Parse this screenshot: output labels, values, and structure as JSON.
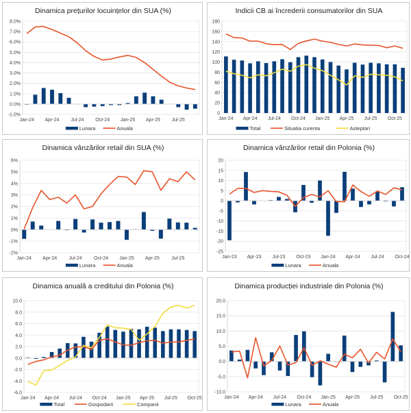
{
  "colors": {
    "bar": "#0b3f7a",
    "red": "#e8532a",
    "yellow": "#f2dc3c",
    "grid": "#e3e3e3",
    "frame": "#c8c8c8"
  },
  "chart_data": [
    {
      "id": "us-house-prices",
      "type": "bar+line",
      "title": "Dinamica prețurilor locuințelor din SUA (%)",
      "x": [
        "Jan-24",
        "Feb-24",
        "Mar-24",
        "Apr-24",
        "May-24",
        "Jun-24",
        "Jul-24",
        "Aug-24",
        "Sep-24",
        "Oct-24",
        "Nov-24",
        "Dec-24",
        "Jan-25",
        "Feb-25",
        "Mar-25",
        "Apr-25",
        "May-25",
        "Jun-25",
        "Jul-25",
        "Aug-25",
        "Sep-25"
      ],
      "xticks": [
        "Jan-24",
        "Apr-24",
        "Jul-24",
        "Oct-24",
        "Jan-25",
        "Apr-25",
        "Jul-25"
      ],
      "ylim": [
        -1,
        8
      ],
      "ystep": 1,
      "yformat": "pct1",
      "series": [
        {
          "name": "Lunara",
          "kind": "bar",
          "color": "#0b3f7a",
          "values": [
            -0.05,
            0.9,
            1.55,
            1.38,
            1.05,
            0.6,
            0.02,
            -0.3,
            -0.25,
            -0.2,
            -0.1,
            -0.1,
            0.1,
            0.75,
            1.1,
            0.75,
            0.42,
            null,
            -0.3,
            -0.55,
            -0.45
          ]
        },
        {
          "name": "Anuala",
          "kind": "line",
          "color": "#e8532a",
          "values": [
            6.8,
            7.45,
            7.5,
            7.2,
            6.85,
            6.5,
            5.9,
            5.15,
            4.6,
            4.25,
            4.35,
            4.55,
            4.7,
            4.5,
            4.0,
            3.35,
            2.7,
            2.1,
            1.75,
            1.55,
            1.4
          ]
        }
      ],
      "legend": [
        "Lunara",
        "Anuala"
      ],
      "legend_position": "bottom",
      "grid": true
    },
    {
      "id": "us-consumer-confidence",
      "type": "bar+line",
      "title": "Indicii CB ai încrederii consumatorilor din SUA",
      "x": [
        "Jan-24",
        "Feb-24",
        "Mar-24",
        "Apr-24",
        "May-24",
        "Jun-24",
        "Jul-24",
        "Aug-24",
        "Sep-24",
        "Oct-24",
        "Nov-24",
        "Dec-24",
        "Jan-25",
        "Feb-25",
        "Mar-25",
        "Apr-25",
        "May-25",
        "Jun-25",
        "Jul-25",
        "Aug-25",
        "Sep-25",
        "Oct-25",
        "Nov-25"
      ],
      "xticks": [
        "Jan-24",
        "Apr-24",
        "Jul-24",
        "Oct-24",
        "Jan-25",
        "Apr-25",
        "Jul-25",
        "Oct-25"
      ],
      "ylim": [
        0,
        180
      ],
      "ystep": 20,
      "yformat": "int",
      "series": [
        {
          "name": "Total",
          "kind": "bar",
          "color": "#0b3f7a",
          "values": [
            111,
            104.5,
            103,
            97.5,
            101.5,
            98,
            101.5,
            105.5,
            99.5,
            109.5,
            112.5,
            109.5,
            105,
            100,
            93,
            85.5,
            98.5,
            95,
            98.5,
            97.5,
            95.5,
            95.5,
            88.7
          ]
        },
        {
          "name": "Situatia curenta",
          "kind": "line",
          "color": "#e8532a",
          "values": [
            155,
            148,
            147,
            141,
            141,
            136,
            134,
            134.5,
            124.5,
            136.5,
            141.5,
            145,
            141,
            138.5,
            134.5,
            131.5,
            135.5,
            133.5,
            133,
            132.5,
            128,
            131.5,
            127
          ]
        },
        {
          "name": "Asteptari",
          "kind": "line",
          "color": "#f2dc3c",
          "values": [
            82,
            77,
            74,
            69,
            75,
            73,
            79,
            86,
            82,
            92,
            95,
            88,
            83,
            74,
            65,
            55,
            73,
            70,
            76,
            75,
            74,
            71,
            63
          ]
        }
      ],
      "legend": [
        "Total",
        "Situatia curenta",
        "Asteptari"
      ],
      "legend_position": "bottom",
      "grid": true
    },
    {
      "id": "us-retail-sales",
      "type": "bar+line",
      "title": "Dinamica vânzărilor retail din SUA (%)",
      "x": [
        "Jan-24",
        "Feb-24",
        "Mar-24",
        "Apr-24",
        "May-24",
        "Jun-24",
        "Jul-24",
        "Aug-24",
        "Sep-24",
        "Oct-24",
        "Nov-24",
        "Dec-24",
        "Jan-25",
        "Feb-25",
        "Mar-25",
        "Apr-25",
        "May-25",
        "Jun-25",
        "Jul-25",
        "Aug-25",
        "Sep-25"
      ],
      "xticks": [
        "Jan-24",
        "Apr-24",
        "Jul-24",
        "Oct-24",
        "Jan-25",
        "Apr-25",
        "Jul-25"
      ],
      "ylim": [
        -2,
        6
      ],
      "ystep": 1,
      "yformat": "pct0",
      "series": [
        {
          "name": "Lunara",
          "kind": "bar",
          "color": "#0b3f7a",
          "values": [
            -0.8,
            0.7,
            0.35,
            null,
            0.75,
            -0.05,
            0.92,
            -0.25,
            0.88,
            0.6,
            0.65,
            0.75,
            -0.88,
            0.03,
            1.52,
            -0.1,
            -0.78,
            0.95,
            0.62,
            0.6,
            0.15
          ]
        },
        {
          "name": "Anuala",
          "kind": "line",
          "color": "#e8532a",
          "values": [
            0.05,
            1.9,
            3.4,
            2.6,
            2.8,
            2.3,
            3.0,
            1.8,
            2.0,
            3.1,
            3.9,
            4.6,
            4.55,
            3.9,
            5.1,
            5.0,
            3.4,
            4.4,
            4.15,
            5.0,
            4.3
          ]
        }
      ],
      "legend": [
        "Lunara",
        "Anuala"
      ],
      "legend_position": "bottom",
      "grid": true
    },
    {
      "id": "pl-retail-sales",
      "type": "bar+line",
      "title": "Dinamica vânzărilor retail din Polonia (%)",
      "x": [
        "Jan-23",
        "Feb-23",
        "Mar-23",
        "Apr-23",
        "May-23",
        "Jun-23",
        "Jul-23",
        "Aug-23",
        "Sep-23",
        "Oct-23",
        "Nov-23",
        "Dec-23",
        "Jan-24",
        "Feb-24",
        "Mar-24",
        "Apr-24",
        "May-24",
        "Jun-24",
        "Jul-24",
        "Aug-24",
        "Sep-24",
        "Oct-24"
      ],
      "xticks": [
        "Jan-23",
        "Apr-23",
        "Jul-23",
        "Oct-23",
        "Jan-24",
        "Apr-24",
        "Jul-24",
        "Oct-24"
      ],
      "ylim": [
        -25,
        20
      ],
      "ystep": 5,
      "yformat": "int",
      "series": [
        {
          "name": "Lunara",
          "kind": "bar",
          "color": "#0b3f7a",
          "values": [
            -19.5,
            -0.8,
            14.2,
            -1.8,
            null,
            0.3,
            1.9,
            0.9,
            -5.7,
            7.8,
            -1.0,
            10.0,
            -17.3,
            -6.0,
            14.3,
            6.0,
            -3.1,
            -1.8,
            4.5,
            -0.3,
            -2.8,
            6.7
          ]
        },
        {
          "name": "Anuala",
          "kind": "line",
          "color": "#e8532a",
          "values": [
            3.3,
            6.1,
            6.1,
            4.1,
            5.0,
            4.6,
            4.4,
            2.7,
            -2.8,
            1.6,
            3.1,
            1.9,
            4.9,
            -0.4,
            -0.5,
            7.8,
            4.5,
            2.2,
            4.8,
            3.1,
            6.4,
            5.4
          ]
        }
      ],
      "legend": [
        "Lunara",
        "Anuala"
      ],
      "legend_position": "bottom",
      "grid": true
    },
    {
      "id": "pl-credit",
      "type": "bar+line",
      "title": "Dinamica anuală a creditului din Polonia (%)",
      "x": [
        "Jan-24",
        "Feb-24",
        "Mar-24",
        "Apr-24",
        "May-24",
        "Jun-24",
        "Jul-24",
        "Aug-24",
        "Sep-24",
        "Oct-24",
        "Nov-24",
        "Dec-24",
        "Jan-25",
        "Feb-25",
        "Mar-25",
        "Apr-25",
        "May-25",
        "Jun-25",
        "Jul-25",
        "Aug-25",
        "Sep-25",
        "Oct-25"
      ],
      "xticks": [
        "Jan-24",
        "Apr-24",
        "Jul-24",
        "Oct-24",
        "Jan-25",
        "Apr-25",
        "Jul-25",
        "Oct-25"
      ],
      "ylim": [
        -6,
        10
      ],
      "ystep": 2,
      "yformat": "fix1",
      "series": [
        {
          "name": "Total",
          "kind": "bar",
          "color": "#0b3f7a",
          "values": [
            0.1,
            -0.15,
            0.2,
            1.05,
            1.65,
            2.6,
            2.55,
            3.7,
            2.85,
            4.4,
            5.5,
            4.9,
            4.6,
            5.1,
            5.0,
            5.45,
            5.3,
            4.7,
            5.0,
            5.0,
            4.9,
            4.7
          ]
        },
        {
          "name": "Gospodarii",
          "kind": "line",
          "color": "#e8532a",
          "values": [
            -1.1,
            -0.6,
            -0.3,
            0.2,
            0.5,
            1.4,
            1.9,
            2.0,
            1.5,
            3.1,
            3.35,
            2.8,
            2.3,
            2.2,
            2.7,
            3.0,
            3.1,
            2.6,
            2.8,
            2.8,
            3.1,
            3.3
          ]
        },
        {
          "name": "Companii",
          "kind": "line",
          "color": "#f2dc3c",
          "values": [
            -4.1,
            -4.7,
            -2.2,
            -2.1,
            -1.3,
            -0.4,
            0.2,
            2.2,
            1.8,
            3.6,
            5.8,
            5.3,
            5.2,
            5.0,
            3.1,
            4.2,
            5.5,
            7.8,
            8.9,
            9.2,
            8.7,
            9.2
          ]
        }
      ],
      "legend": [
        "Total",
        "Gospodarii",
        "Companii"
      ],
      "legend_position": "bottom",
      "grid": true
    },
    {
      "id": "pl-industrial-production",
      "type": "bar+line",
      "title": "Dinamica producției industriale din Polonia (%)",
      "x": [
        "Jan-24",
        "Feb-24",
        "Mar-24",
        "Apr-24",
        "May-24",
        "Jun-24",
        "Jul-24",
        "Aug-24",
        "Sep-24",
        "Oct-24",
        "Nov-24",
        "Dec-24",
        "Jan-25",
        "Feb-25",
        "Mar-25",
        "Apr-25",
        "May-25",
        "Jun-25",
        "Jul-25",
        "Aug-25",
        "Sep-25",
        "Oct-25"
      ],
      "xticks": [
        "Jan-24",
        "Apr-24",
        "Jul-24",
        "Oct-24",
        "Jan-25",
        "Apr-25",
        "Jul-25",
        "Oct-25"
      ],
      "ylim": [
        -10,
        20
      ],
      "ystep": 5,
      "yformat": "fix1",
      "series": [
        {
          "name": "Lunara",
          "kind": "bar",
          "color": "#0b3f7a",
          "values": [
            3.6,
            0.6,
            3.8,
            -2.3,
            -4.5,
            3.0,
            -3.0,
            -4.8,
            8.7,
            9.9,
            -5.2,
            -7.9,
            2.5,
            -0.1,
            8.5,
            -3.5,
            -1.8,
            -1.3,
            0.3,
            -6.9,
            16.3,
            5.3
          ]
        },
        {
          "name": "Anuala",
          "kind": "line",
          "color": "#e8532a",
          "values": [
            3.1,
            3.4,
            -5.4,
            7.8,
            -1.5,
            0.3,
            5.1,
            -1.2,
            -0.4,
            4.5,
            -1.3,
            0.2,
            -0.9,
            -1.9,
            2.4,
            1.2,
            4.0,
            -0.5,
            3.0,
            0.8,
            7.4,
            3.2
          ]
        }
      ],
      "legend": [
        "Lunara",
        "Anuala"
      ],
      "legend_position": "bottom",
      "grid": true
    }
  ]
}
